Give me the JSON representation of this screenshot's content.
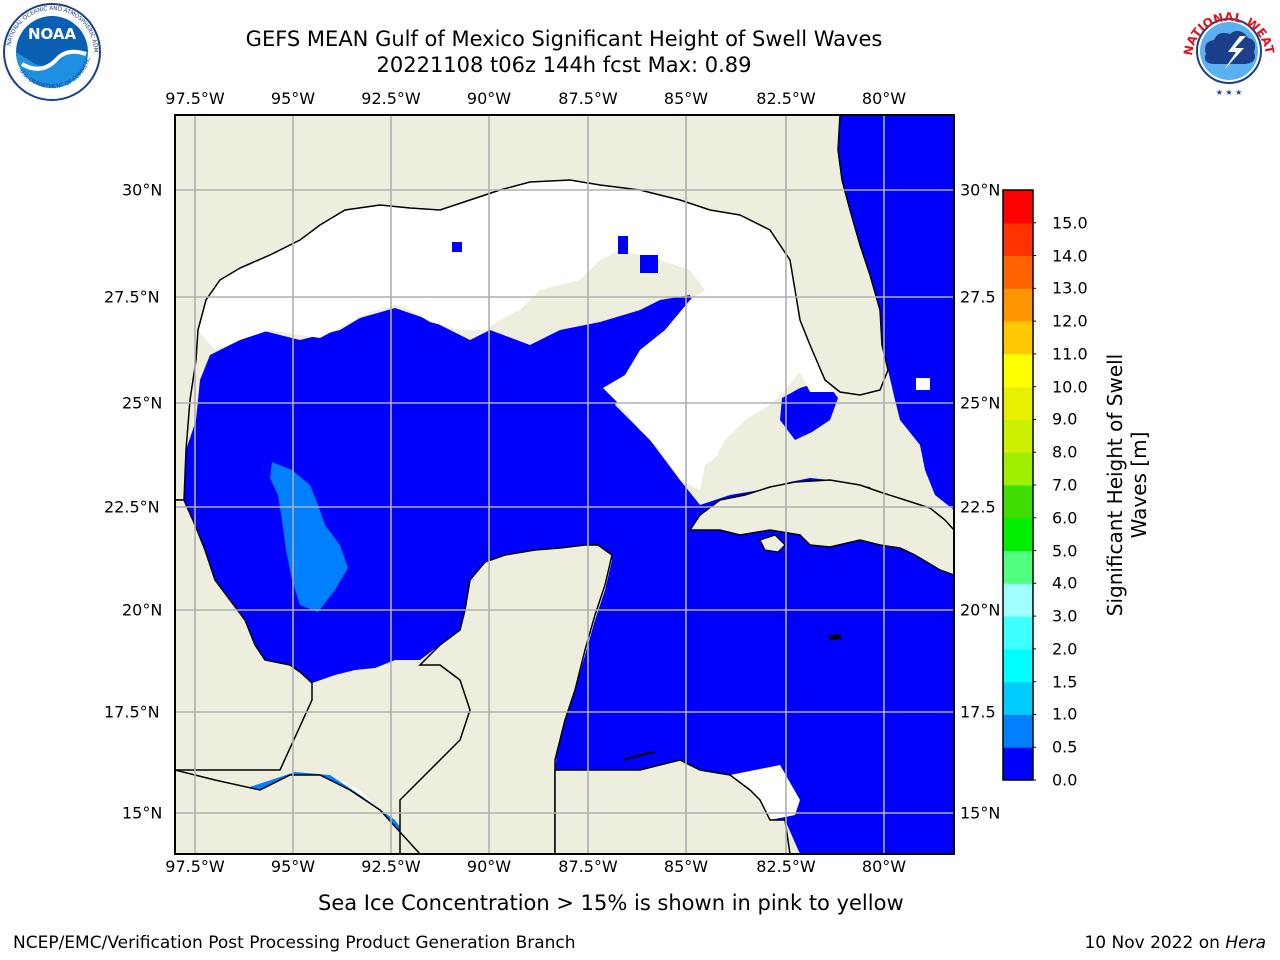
{
  "title_line1": "GEFS MEAN Gulf of Mexico Significant Height of Swell Waves",
  "title_line2": "20221108 t06z 144h fcst   Max: 0.89",
  "lon_labels": [
    "97.5°W",
    "95°W",
    "92.5°W",
    "90°W",
    "87.5°W",
    "85°W",
    "82.5°W",
    "80°W"
  ],
  "lat_labels": [
    "30°N",
    "27.5°N",
    "25°N",
    "22.5°N",
    "20°N",
    "17.5°N",
    "15°N"
  ],
  "right_lat_labels": [
    "30°N",
    "27.5",
    "25°N",
    "22.5",
    "20°N",
    "17.5",
    "15°N"
  ],
  "colorbar": {
    "label_line1": "Significant Height of Swell",
    "label_line2": "Waves [m]",
    "ticks": [
      "0.0",
      "0.5",
      "1.0",
      "1.5",
      "2.0",
      "3.0",
      "4.0",
      "5.0",
      "6.0",
      "7.0",
      "8.0",
      "9.0",
      "10.0",
      "11.0",
      "12.0",
      "13.0",
      "14.0",
      "15.0"
    ],
    "colors": [
      "#0000ff",
      "#0080ff",
      "#00ccff",
      "#00ffff",
      "#40ffff",
      "#a0ffff",
      "#50ff80",
      "#00ee00",
      "#40dd00",
      "#a0ee00",
      "#ccf000",
      "#e8f000",
      "#ffff00",
      "#ffc800",
      "#ff9600",
      "#ff6400",
      "#ff3200",
      "#ff0000"
    ]
  },
  "colors": {
    "land": "#eeeedf",
    "ocean_low": "#0000ff",
    "ocean_mid": "#0080ff",
    "no_data": "#ffffff",
    "grid": "#b0b0b0"
  },
  "note": "Sea Ice Concentration > 15% is shown in pink to yellow",
  "credit": "NCEP/EMC/Verification Post Processing Product Generation Branch",
  "date_prefix": "10 Nov 2022 on",
  "date_host": "Hera",
  "logos": {
    "left": "noaa-logo",
    "right": "national-weather-service-logo",
    "right_text": "NATIONAL WEATHER SERVICE"
  }
}
